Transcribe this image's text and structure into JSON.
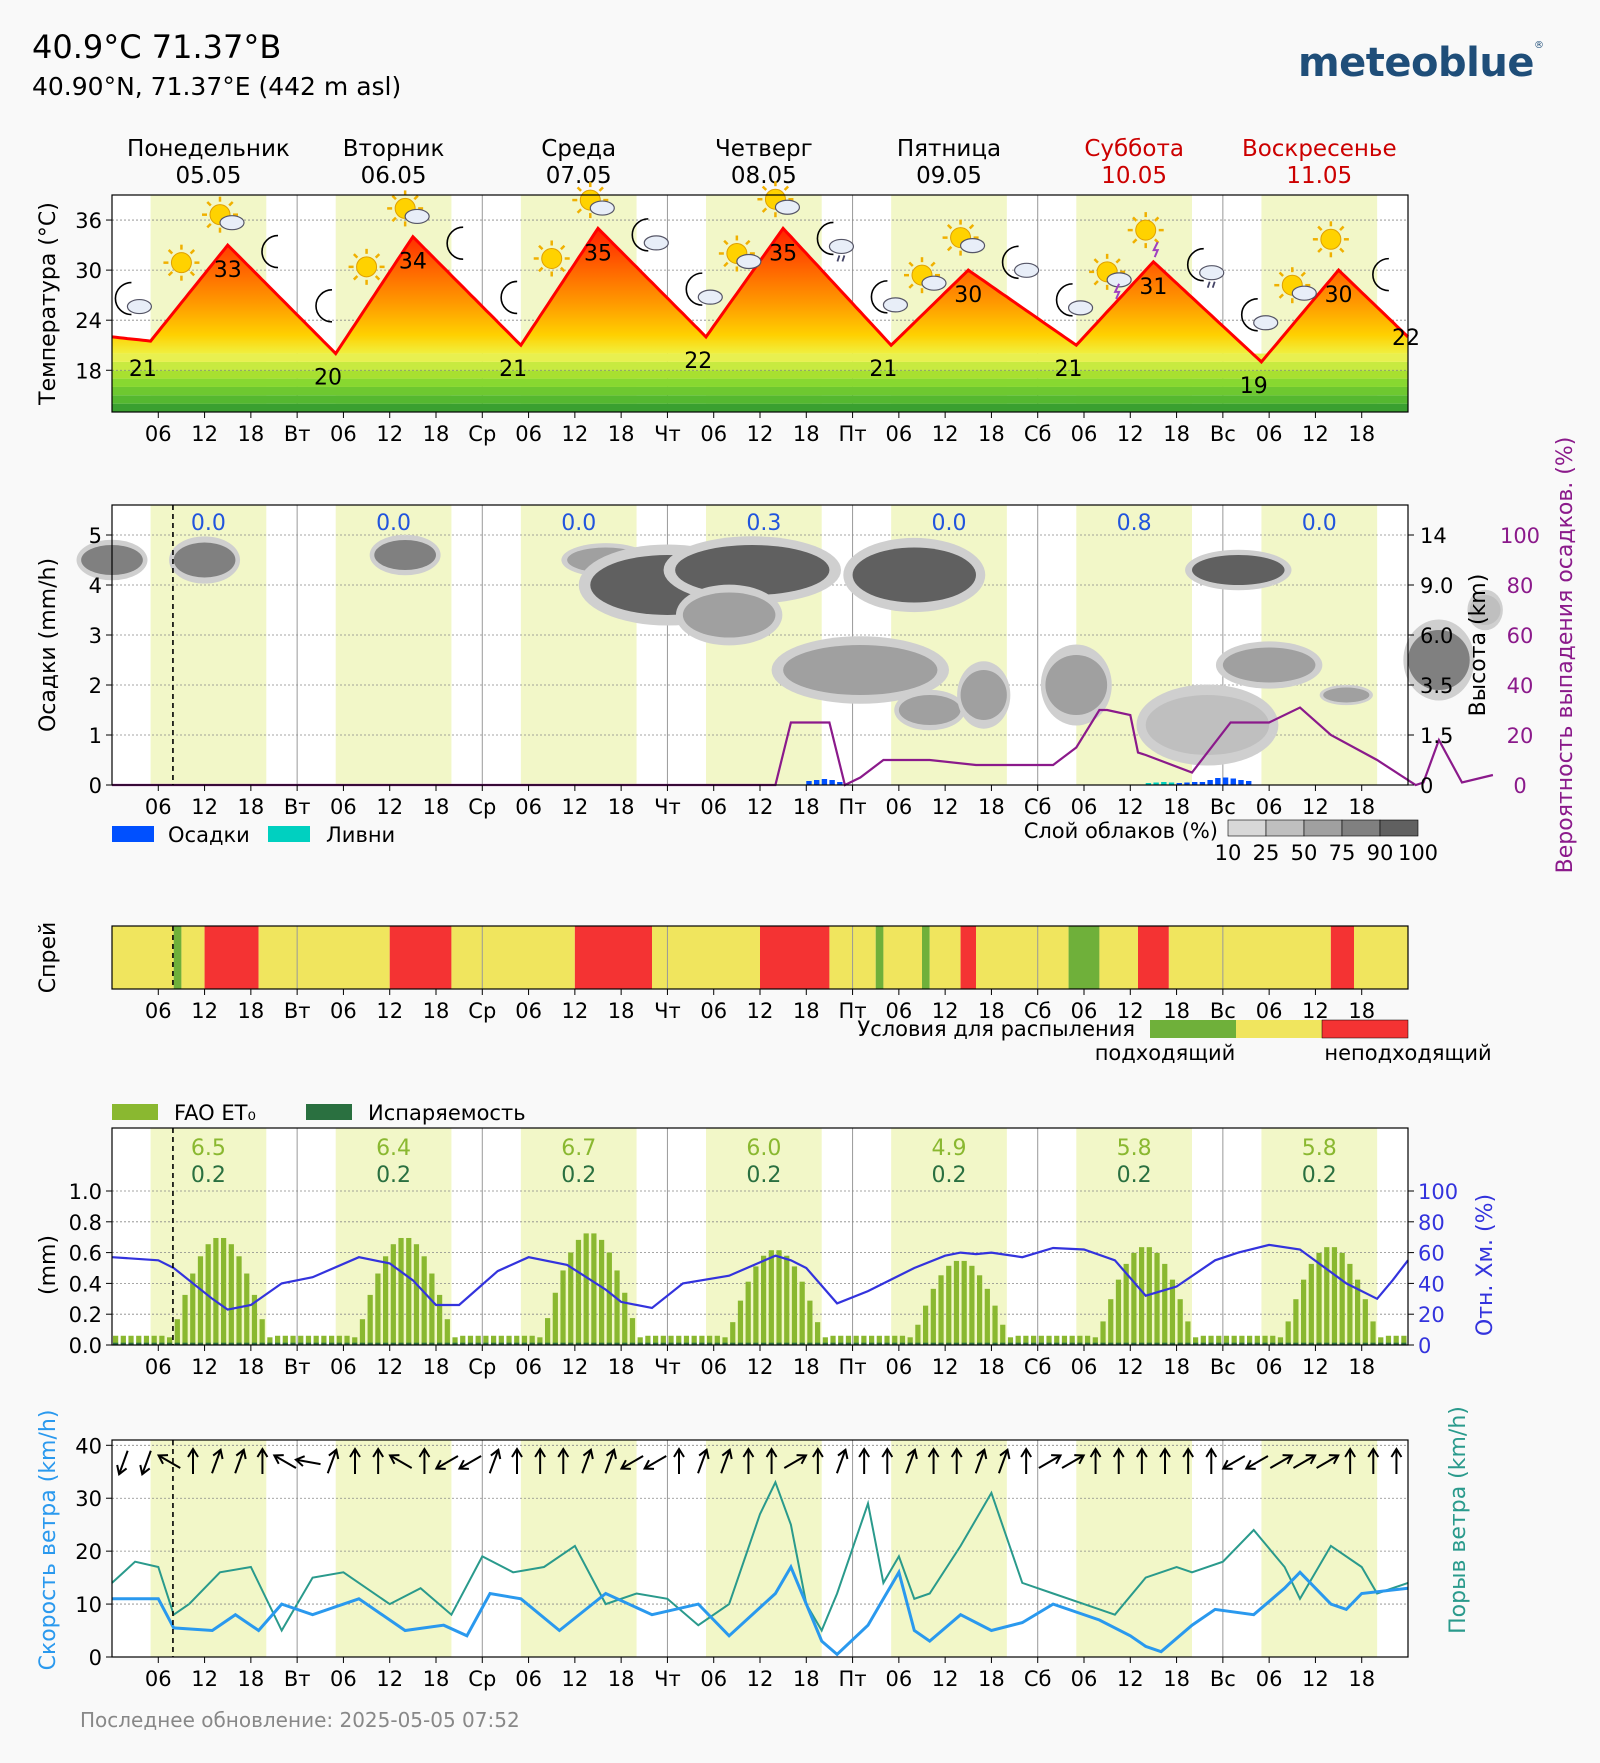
{
  "header": {
    "title": "40.9°C 71.37°B",
    "coords": "40.90°N, 71.37°E (442 m asl)",
    "logo": "meteoblue",
    "logo_mark": "®",
    "footer": "Последнее обновление: 2025-05-05 07:52"
  },
  "days": [
    {
      "name": "Понедельник",
      "date": "05.05",
      "short": "",
      "weekend": false
    },
    {
      "name": "Вторник",
      "date": "06.05",
      "short": "Вт",
      "weekend": false
    },
    {
      "name": "Среда",
      "date": "07.05",
      "short": "Ср",
      "weekend": false
    },
    {
      "name": "Четверг",
      "date": "08.05",
      "short": "Чт",
      "weekend": false
    },
    {
      "name": "Пятница",
      "date": "09.05",
      "short": "Пт",
      "weekend": false
    },
    {
      "name": "Суббота",
      "date": "10.05",
      "short": "Сб",
      "weekend": true
    },
    {
      "name": "Воскресенье",
      "date": "11.05",
      "short": "Вс",
      "weekend": true
    }
  ],
  "hour_ticks": [
    "06",
    "12",
    "18"
  ],
  "colors": {
    "weekend": "#cc0000",
    "daylight": "#f2f7c8",
    "temp_line": "#ff0000",
    "precip": "#0050ff",
    "showers": "#00d0c0",
    "prob": "#8b1a8b",
    "rh": "#3333dd",
    "et0": "#8ab830",
    "evap": "#2a7040",
    "wind": "#2a99ee",
    "gust": "#2a9a8c",
    "spray_good": "#6fb03a",
    "spray_mid": "#f0e55e",
    "spray_bad": "#f43333"
  },
  "chart_data": [
    {
      "type": "area",
      "id": "temperature",
      "ylabel": "Температура (°C)",
      "ylim": [
        13,
        39
      ],
      "yticks": [
        18,
        24,
        30,
        36
      ],
      "daily_max": [
        33,
        34,
        35,
        35,
        30,
        31,
        30
      ],
      "daily_min": [
        21,
        20,
        21,
        22,
        21,
        21,
        19
      ],
      "end_value": 22,
      "icons": [
        {
          "t": 2,
          "icon": "moon-cloud"
        },
        {
          "t": 9,
          "icon": "sun"
        },
        {
          "t": 14,
          "icon": "sun-cloud"
        },
        {
          "t": 21,
          "icon": "moon"
        },
        {
          "t": 28,
          "icon": "moon"
        },
        {
          "t": 33,
          "icon": "sun"
        },
        {
          "t": 38,
          "icon": "sun-cloud"
        },
        {
          "t": 45,
          "icon": "moon"
        },
        {
          "t": 52,
          "icon": "moon"
        },
        {
          "t": 57,
          "icon": "sun"
        },
        {
          "t": 62,
          "icon": "sun-cloud"
        },
        {
          "t": 69,
          "icon": "moon-cloud"
        },
        {
          "t": 76,
          "icon": "moon-cloud"
        },
        {
          "t": 81,
          "icon": "sun-cloud"
        },
        {
          "t": 86,
          "icon": "sun-cloud"
        },
        {
          "t": 93,
          "icon": "moon-cloud-rain"
        },
        {
          "t": 100,
          "icon": "moon-cloud"
        },
        {
          "t": 105,
          "icon": "sun-cloud"
        },
        {
          "t": 110,
          "icon": "sun-cloud"
        },
        {
          "t": 117,
          "icon": "moon-cloud"
        },
        {
          "t": 124,
          "icon": "moon-cloud"
        },
        {
          "t": 129,
          "icon": "sun-cloud-storm"
        },
        {
          "t": 134,
          "icon": "sun-storm"
        },
        {
          "t": 141,
          "icon": "moon-cloud-rain"
        },
        {
          "t": 148,
          "icon": "moon-cloud"
        },
        {
          "t": 153,
          "icon": "sun-cloud"
        },
        {
          "t": 158,
          "icon": "sun"
        },
        {
          "t": 165,
          "icon": "moon"
        }
      ]
    },
    {
      "type": "bar",
      "id": "precipitation",
      "ylabel": "Осадки (mm/h)",
      "ylim": [
        0,
        5.6
      ],
      "yticks": [
        0,
        1,
        2,
        3,
        4,
        5
      ],
      "daily_sum": [
        "0.0",
        "0.0",
        "0.0",
        "0.3",
        "0.0",
        "0.8",
        "0.0"
      ],
      "right_axis_label": "Высота (km)",
      "right_axis_ticks": [
        "14",
        "9.0",
        "6.0",
        "3.5",
        "1.5",
        "0"
      ],
      "prob_axis_label": "Вероятность выпадения осадков. (%)",
      "prob_axis_ticks": [
        "100",
        "80",
        "60",
        "40",
        "20",
        "0"
      ],
      "precip_hours": [
        [
          90,
          0.08
        ],
        [
          91,
          0.1
        ],
        [
          92,
          0.12
        ],
        [
          93,
          0.1
        ],
        [
          94,
          0.06
        ],
        [
          138,
          0.04
        ],
        [
          139,
          0.05
        ],
        [
          140,
          0.06
        ],
        [
          141,
          0.06
        ],
        [
          142,
          0.1
        ],
        [
          143,
          0.14
        ],
        [
          144,
          0.15
        ],
        [
          145,
          0.13
        ],
        [
          146,
          0.1
        ],
        [
          147,
          0.08
        ]
      ],
      "shower_hours": [
        [
          134,
          0.04
        ],
        [
          135,
          0.05
        ],
        [
          136,
          0.06
        ],
        [
          137,
          0.05
        ]
      ],
      "probability_series": {
        "name": "Вероятность выпадения осадков. (%)",
        "t": [
          0,
          86,
          88,
          93,
          95,
          97,
          100,
          106,
          112,
          114,
          122,
          125,
          128,
          129,
          132,
          133,
          134,
          140,
          145,
          150,
          154,
          158,
          164,
          169,
          170,
          172,
          175,
          179
        ],
        "values": [
          0,
          0,
          25,
          25,
          0,
          3,
          10,
          10,
          8,
          8,
          8,
          15,
          30,
          30,
          28,
          13,
          12,
          5,
          25,
          25,
          31,
          20,
          10,
          0,
          1,
          18,
          1,
          4
        ]
      },
      "legend": [
        "Осадки",
        "Ливни"
      ],
      "cloud_legend_label": "Слой облаков (%)",
      "cloud_legend_ticks": [
        "10",
        "25",
        "50",
        "75",
        "90",
        "100"
      ],
      "cloud_patches": [
        {
          "t": 0,
          "h": 4.5,
          "w": 4,
          "hh": 0.3,
          "c": 75
        },
        {
          "t": 12,
          "h": 4.5,
          "w": 4,
          "hh": 0.35,
          "c": 75
        },
        {
          "t": 38,
          "h": 4.6,
          "w": 4,
          "hh": 0.3,
          "c": 75
        },
        {
          "t": 64,
          "h": 4.5,
          "w": 5,
          "hh": 0.25,
          "c": 50
        },
        {
          "t": 72,
          "h": 4.0,
          "w": 10,
          "hh": 0.6,
          "c": 90
        },
        {
          "t": 83,
          "h": 4.3,
          "w": 10,
          "hh": 0.5,
          "c": 90
        },
        {
          "t": 80,
          "h": 3.4,
          "w": 6,
          "hh": 0.45,
          "c": 50
        },
        {
          "t": 104,
          "h": 4.2,
          "w": 8,
          "hh": 0.55,
          "c": 90
        },
        {
          "t": 97,
          "h": 2.3,
          "w": 10,
          "hh": 0.5,
          "c": 50
        },
        {
          "t": 106,
          "h": 1.5,
          "w": 4,
          "hh": 0.3,
          "c": 50
        },
        {
          "t": 113,
          "h": 1.8,
          "w": 3,
          "hh": 0.5,
          "c": 50
        },
        {
          "t": 125,
          "h": 2.0,
          "w": 4,
          "hh": 0.6,
          "c": 50
        },
        {
          "t": 146,
          "h": 4.3,
          "w": 6,
          "hh": 0.3,
          "c": 90
        },
        {
          "t": 150,
          "h": 2.4,
          "w": 6,
          "hh": 0.35,
          "c": 50
        },
        {
          "t": 142,
          "h": 1.2,
          "w": 8,
          "hh": 0.6,
          "c": 25
        },
        {
          "t": 160,
          "h": 1.8,
          "w": 3,
          "hh": 0.15,
          "c": 50
        },
        {
          "t": 172,
          "h": 2.5,
          "w": 4,
          "hh": 0.6,
          "c": 75
        },
        {
          "t": 178,
          "h": 3.5,
          "w": 2,
          "hh": 0.3,
          "c": 25
        }
      ]
    },
    {
      "type": "heatmap",
      "id": "spray",
      "ylabel": "Спрей",
      "legend_title": "Условия для распыления",
      "legend_good": "подходящий",
      "legend_bad": "неподходящий",
      "segments": [
        {
          "from": 0,
          "to": 8,
          "s": "mid"
        },
        {
          "from": 8,
          "to": 9,
          "s": "good"
        },
        {
          "from": 9,
          "to": 12,
          "s": "mid"
        },
        {
          "from": 12,
          "to": 19,
          "s": "bad"
        },
        {
          "from": 19,
          "to": 36,
          "s": "mid"
        },
        {
          "from": 36,
          "to": 44,
          "s": "bad"
        },
        {
          "from": 44,
          "to": 60,
          "s": "mid"
        },
        {
          "from": 60,
          "to": 70,
          "s": "bad"
        },
        {
          "from": 70,
          "to": 84,
          "s": "mid"
        },
        {
          "from": 84,
          "to": 93,
          "s": "bad"
        },
        {
          "from": 93,
          "to": 99,
          "s": "mid"
        },
        {
          "from": 99,
          "to": 100,
          "s": "good"
        },
        {
          "from": 100,
          "to": 105,
          "s": "mid"
        },
        {
          "from": 105,
          "to": 106,
          "s": "good"
        },
        {
          "from": 106,
          "to": 110,
          "s": "mid"
        },
        {
          "from": 110,
          "to": 112,
          "s": "bad"
        },
        {
          "from": 112,
          "to": 124,
          "s": "mid"
        },
        {
          "from": 124,
          "to": 128,
          "s": "good"
        },
        {
          "from": 128,
          "to": 133,
          "s": "mid"
        },
        {
          "from": 133,
          "to": 137,
          "s": "bad"
        },
        {
          "from": 137,
          "to": 158,
          "s": "mid"
        },
        {
          "from": 158,
          "to": 161,
          "s": "bad"
        },
        {
          "from": 161,
          "to": 168,
          "s": "mid"
        }
      ]
    },
    {
      "type": "bar",
      "id": "evapotranspiration",
      "ylabel": "(mm)",
      "ylim": [
        0,
        1.0
      ],
      "yticks": [
        "0.0",
        "0.2",
        "0.4",
        "0.6",
        "0.8",
        "1.0"
      ],
      "legend": [
        "FAO ET₀",
        "Испаряемость"
      ],
      "daily_et0": [
        "6.5",
        "6.4",
        "6.7",
        "6.0",
        "4.9",
        "5.8",
        "5.8"
      ],
      "daily_evap": [
        "0.2",
        "0.2",
        "0.2",
        "0.2",
        "0.2",
        "0.2",
        "0.2"
      ],
      "daily_peak_et0": [
        0.7,
        0.7,
        0.73,
        0.62,
        0.55,
        0.64,
        0.64
      ],
      "rh_axis_label": "Отн. Хм. (%)",
      "rh_axis_ticks": [
        "0",
        "20",
        "40",
        "60",
        "80",
        "100"
      ],
      "rh_series": {
        "name": "Отн. Хм. (%)",
        "t": [
          0,
          6,
          8,
          13,
          15,
          18,
          22,
          26,
          32,
          36,
          39,
          42,
          45,
          50,
          54,
          59,
          64,
          66,
          70,
          74,
          80,
          86,
          88,
          90,
          94,
          98,
          104,
          108,
          110,
          112,
          114,
          118,
          122,
          126,
          130,
          134,
          138,
          143,
          146,
          150,
          154,
          160,
          164,
          166,
          168
        ],
        "values": [
          57,
          55,
          50,
          30,
          23,
          26,
          40,
          44,
          57,
          53,
          42,
          26,
          26,
          48,
          57,
          52,
          36,
          28,
          24,
          40,
          45,
          58,
          55,
          50,
          27,
          35,
          50,
          58,
          60,
          59,
          60,
          57,
          63,
          62,
          55,
          32,
          38,
          55,
          60,
          65,
          62,
          40,
          30,
          42,
          55
        ]
      }
    },
    {
      "type": "line",
      "id": "wind",
      "ylabel": "Скорость ветра (km/h)",
      "ylim": [
        0,
        41
      ],
      "yticks": [
        0,
        10,
        20,
        30,
        40
      ],
      "gust_axis_label": "Порыв ветра (km/h)",
      "series": [
        {
          "name": "Скорость ветра (km/h)",
          "t": [
            0,
            6,
            8,
            13,
            16,
            19,
            22,
            26,
            32,
            38,
            43,
            46,
            49,
            53,
            58,
            64,
            70,
            76,
            80,
            86,
            88,
            92,
            94,
            98,
            100,
            102,
            104,
            106,
            110,
            114,
            118,
            122,
            128,
            132,
            134,
            136,
            140,
            143,
            148,
            152,
            154,
            158,
            160,
            162,
            168
          ],
          "values": [
            11,
            11,
            5.5,
            5,
            8,
            5,
            10,
            8,
            11,
            5,
            6,
            4,
            12,
            11,
            5,
            12,
            8,
            10,
            4,
            12,
            17,
            3,
            0.5,
            6,
            11,
            16,
            5,
            3,
            8,
            5,
            6.5,
            10,
            7,
            4,
            2,
            1,
            6,
            9,
            8,
            13,
            16,
            10,
            9,
            12,
            13
          ]
        },
        {
          "name": "Порыв ветра (km/h)",
          "t": [
            0,
            3,
            6,
            8,
            10,
            14,
            18,
            22,
            26,
            30,
            36,
            40,
            44,
            48,
            52,
            56,
            60,
            64,
            68,
            72,
            76,
            80,
            84,
            86,
            88,
            90,
            92,
            94,
            98,
            100,
            102,
            104,
            106,
            110,
            114,
            118,
            122,
            126,
            130,
            134,
            138,
            140,
            144,
            148,
            152,
            154,
            158,
            162,
            164,
            168
          ],
          "values": [
            14,
            18,
            17,
            8,
            10,
            16,
            17,
            5,
            15,
            16,
            10,
            13,
            8,
            19,
            16,
            17,
            21,
            10,
            12,
            11,
            6,
            10,
            27,
            33,
            25,
            10,
            5,
            12,
            29,
            14,
            19,
            11,
            12,
            21,
            31,
            14,
            12,
            10,
            8,
            15,
            17,
            16,
            18,
            24,
            17,
            11,
            21,
            17,
            12,
            14
          ]
        }
      ],
      "wind_direction_deg": [
        20,
        20,
        20,
        20,
        20,
        120,
        120,
        180,
        180,
        180,
        180,
        200,
        200,
        200,
        200,
        200,
        200,
        200,
        180,
        180,
        120,
        120,
        120,
        120,
        100,
        100,
        180,
        200,
        200,
        200,
        180,
        180,
        180,
        180,
        180,
        120,
        120,
        180,
        180,
        180,
        180,
        60,
        60,
        60,
        60,
        60,
        80,
        80,
        200,
        200,
        200,
        180,
        180,
        180,
        180,
        180,
        180,
        180,
        180,
        180,
        200,
        200,
        200,
        200,
        200,
        60,
        60,
        60,
        60,
        60,
        60,
        180,
        180,
        180,
        180,
        200,
        200,
        200,
        200,
        200,
        200,
        180,
        180,
        180,
        180,
        240,
        240,
        240,
        180,
        180,
        180,
        180,
        180,
        200,
        200,
        200,
        180,
        180,
        180,
        180,
        200,
        200,
        200,
        200,
        200,
        180,
        180,
        180,
        180,
        180,
        200,
        200,
        200,
        200,
        200,
        180,
        180,
        180,
        180,
        240,
        240,
        240,
        240,
        240,
        240,
        240,
        180,
        180,
        180,
        180,
        180,
        180,
        180,
        180,
        180,
        180,
        180,
        180,
        180,
        180,
        180,
        180,
        60,
        60,
        60,
        60,
        60,
        60,
        60,
        240,
        240,
        240,
        240,
        240,
        240,
        240,
        240,
        240,
        180,
        180,
        180,
        180,
        180,
        180,
        180,
        180
      ]
    }
  ]
}
